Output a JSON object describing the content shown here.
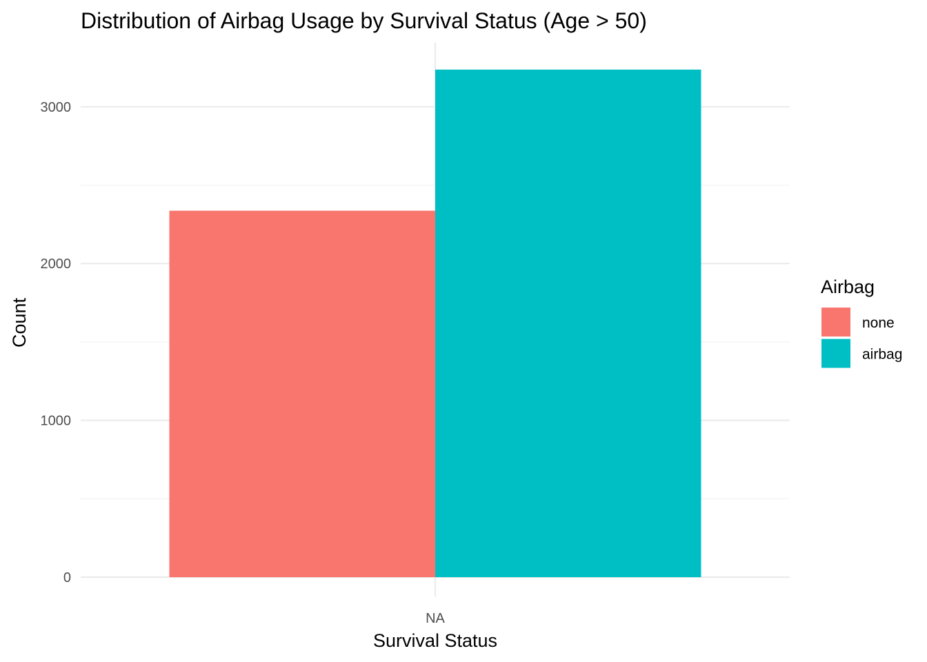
{
  "chart_data": {
    "type": "bar",
    "title": "Distribution of Airbag Usage by Survival Status (Age > 50)",
    "xlabel": "Survival Status",
    "ylabel": "Count",
    "categories": [
      "NA"
    ],
    "series": [
      {
        "name": "none",
        "values": [
          2337
        ],
        "color": "#F8766D"
      },
      {
        "name": "airbag",
        "values": [
          3237
        ],
        "color": "#00BFC4"
      }
    ],
    "yticks": [
      0,
      1000,
      2000,
      3000
    ],
    "ylim": [
      0,
      3400
    ],
    "legend": {
      "title": "Airbag",
      "position": "right"
    },
    "grid": true
  }
}
